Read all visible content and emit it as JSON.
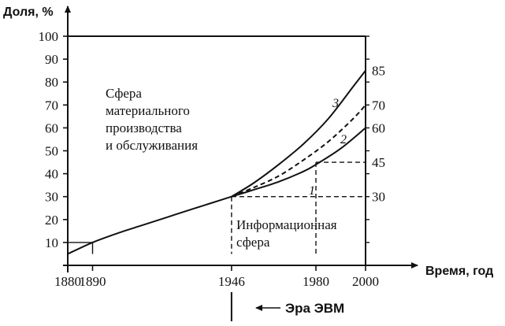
{
  "chart_data": {
    "type": "line",
    "ylabel": "Доля, %",
    "xlabel": "Время, год",
    "xlim": [
      1880,
      2000
    ],
    "ylim": [
      0,
      100
    ],
    "x_ticks": [
      1880,
      1890,
      1946,
      1980,
      2000
    ],
    "y_ticks": [
      10,
      20,
      30,
      40,
      50,
      60,
      70,
      80,
      90,
      100
    ],
    "right_labels": [
      85,
      70,
      60,
      45,
      30
    ],
    "series": [
      {
        "name": "",
        "style": "solid",
        "x": [
          1880,
          1890,
          1900,
          1910,
          1920,
          1930,
          1946
        ],
        "y": [
          5,
          10,
          14,
          17.5,
          21,
          24.5,
          30
        ]
      },
      {
        "name": "1",
        "style": "solid",
        "x": [
          1946,
          1955,
          1965,
          1975,
          1980,
          1990,
          2000
        ],
        "y": [
          30,
          33,
          36.5,
          41,
          44,
          51,
          60
        ]
      },
      {
        "name": "2",
        "style": "dashed",
        "x": [
          1946,
          1955,
          1965,
          1975,
          1985,
          1995,
          2000
        ],
        "y": [
          30,
          34,
          39,
          46,
          54,
          64,
          70
        ]
      },
      {
        "name": "3",
        "style": "solid",
        "x": [
          1946,
          1955,
          1965,
          1975,
          1985,
          1995,
          2000
        ],
        "y": [
          30,
          36,
          44,
          53,
          64,
          78,
          85
        ]
      }
    ],
    "guide_lines": [
      {
        "style": "solid",
        "x": [
          1880,
          1890,
          1890
        ],
        "y": [
          10,
          10,
          5
        ]
      },
      {
        "style": "dashed",
        "x": [
          1946,
          2000
        ],
        "y": [
          30,
          30
        ]
      },
      {
        "style": "dashed",
        "x": [
          1946,
          1946
        ],
        "y": [
          30,
          5
        ]
      },
      {
        "style": "dashed",
        "x": [
          1980,
          2000
        ],
        "y": [
          45,
          45
        ]
      },
      {
        "style": "dashed",
        "x": [
          1980,
          1980
        ],
        "y": [
          45,
          5
        ]
      }
    ],
    "annotations": {
      "upper_region": [
        "Сфера",
        "материального",
        "производства",
        "и обслуживания"
      ],
      "lower_region": [
        "Информационная",
        "сфера"
      ],
      "era_label": "Эра ЭВМ",
      "curve_labels": [
        "1",
        "2",
        "3"
      ]
    }
  }
}
